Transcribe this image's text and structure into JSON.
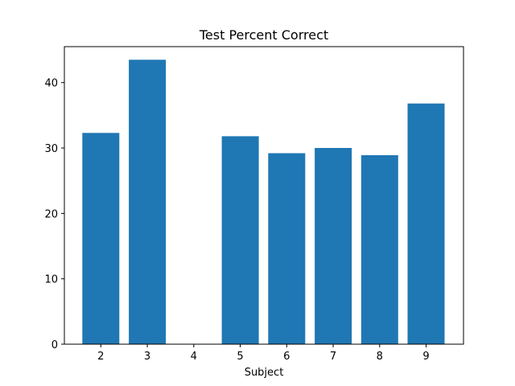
{
  "chart_data": {
    "type": "bar",
    "title": "Test Percent Correct",
    "xlabel": "Subject",
    "ylabel": "",
    "categories": [
      "2",
      "3",
      "4",
      "5",
      "6",
      "7",
      "8",
      "9"
    ],
    "values": [
      32.3,
      43.5,
      0,
      31.8,
      29.2,
      30.0,
      28.9,
      36.8
    ],
    "ylim": [
      0,
      45.5
    ],
    "yticks": [
      0,
      10,
      20,
      30,
      40
    ],
    "grid": false,
    "colors": {
      "bar": "#1f77b4",
      "axes": "#000000",
      "background": "#ffffff"
    }
  }
}
